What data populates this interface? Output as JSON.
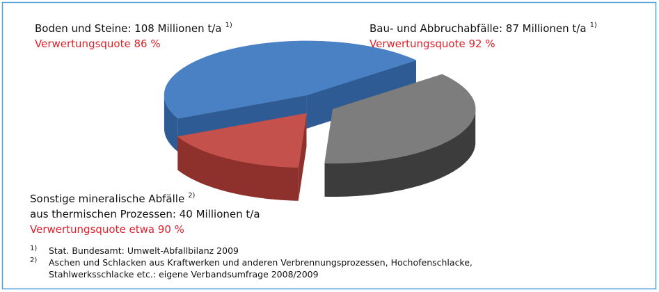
{
  "chart_data": {
    "type": "pie",
    "slices": [
      {
        "label_lines": [
          "Boden und Steine: 108 Millionen t/a"
        ],
        "footnote_ref": "1)",
        "quote": "Verwertungsquote 86 %",
        "value": 108,
        "color": "#4a80c4",
        "side_color": "#2e5b94"
      },
      {
        "label_lines": [
          "Sonstige mineralische Abfälle",
          "aus thermischen Prozessen: 40 Millionen t/a"
        ],
        "footnote_ref": "2)",
        "quote": "Verwertungsquote etwa 90 %",
        "value": 40,
        "color": "#c4514c",
        "side_color": "#8e302c"
      },
      {
        "label_lines": [
          "Bau- und Abbruchabfälle: 87 Millionen t/a"
        ],
        "footnote_ref": "1)",
        "quote": "Verwertungsquote 92 %",
        "value": 87,
        "color": "#7d7d7d",
        "side_color": "#3c3c3c"
      }
    ],
    "footnotes": [
      {
        "ref": "1)",
        "lines": [
          "Stat. Bundesamt: Umwelt-Abfallbilanz 2009"
        ]
      },
      {
        "ref": "2)",
        "lines": [
          "Aschen und Schlacken aus Kraftwerken und anderen Verbrennungsprozessen, Hochofenschlacke,",
          "Stahlwerksschlacke etc.: eigene Verbandsumfrage 2008/2009"
        ]
      }
    ]
  }
}
